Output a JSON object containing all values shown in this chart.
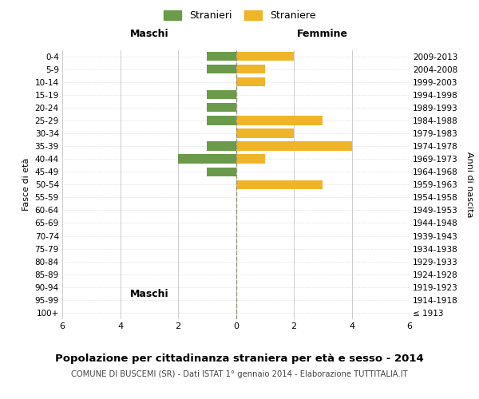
{
  "age_groups": [
    "100+",
    "95-99",
    "90-94",
    "85-89",
    "80-84",
    "75-79",
    "70-74",
    "65-69",
    "60-64",
    "55-59",
    "50-54",
    "45-49",
    "40-44",
    "35-39",
    "30-34",
    "25-29",
    "20-24",
    "15-19",
    "10-14",
    "5-9",
    "0-4"
  ],
  "birth_years": [
    "≤ 1913",
    "1914-1918",
    "1919-1923",
    "1924-1928",
    "1929-1933",
    "1934-1938",
    "1939-1943",
    "1944-1948",
    "1949-1953",
    "1954-1958",
    "1959-1963",
    "1964-1968",
    "1969-1973",
    "1974-1978",
    "1979-1983",
    "1984-1988",
    "1989-1993",
    "1994-1998",
    "1999-2003",
    "2004-2008",
    "2009-2013"
  ],
  "maschi": [
    0,
    0,
    0,
    0,
    0,
    0,
    0,
    0,
    0,
    0,
    0,
    1,
    2,
    1,
    0,
    1,
    1,
    1,
    0,
    1,
    1
  ],
  "femmine": [
    0,
    0,
    0,
    0,
    0,
    0,
    0,
    0,
    0,
    0,
    3,
    0,
    1,
    4,
    2,
    3,
    0,
    0,
    1,
    1,
    2
  ],
  "color_maschi": "#6a9a4a",
  "color_femmine": "#f0b429",
  "title": "Popolazione per cittadinanza straniera per età e sesso - 2014",
  "subtitle": "COMUNE DI BUSCEMI (SR) - Dati ISTAT 1° gennaio 2014 - Elaborazione TUTTITALIA.IT",
  "xlabel_left": "Maschi",
  "xlabel_right": "Femmine",
  "ylabel_left": "Fasce di età",
  "ylabel_right": "Anni di nascita",
  "legend_maschi": "Stranieri",
  "legend_femmine": "Straniere",
  "xlim": 6,
  "background_color": "#ffffff",
  "grid_color": "#cccccc"
}
